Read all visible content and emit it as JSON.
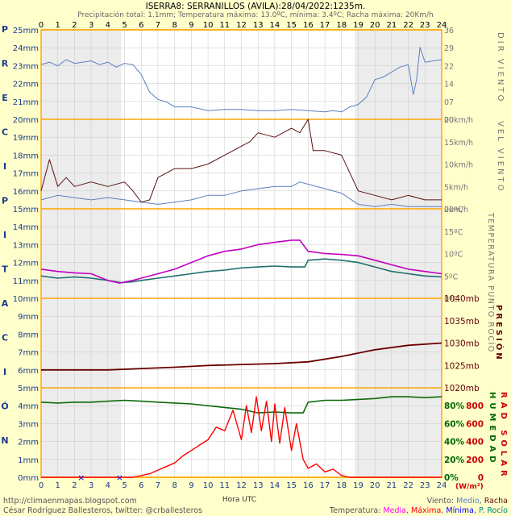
{
  "header": {
    "title": "ISERRA8: SERRANILLOS (AVILA):28/04/2022:1235m.",
    "subtitle": "Precipitación total: 1.1mm; Temperatura máxima: 13.0ºC, mínima: 3.4ºC; Racha máxima: 20Km/h"
  },
  "left_letters": [
    "P",
    "R",
    "E",
    "C",
    "I",
    "P",
    "I",
    "T",
    "A",
    "C",
    "I",
    "Ó",
    "N"
  ],
  "right_vertical": {
    "dir_viento": "DIR VIENTO",
    "vel_viento": "VEL VIENTO",
    "temp_rocio": "TEMPERATURA PUNTO ROCÍO",
    "presion": "PRESIÓN",
    "humedad": "HUMEDAD",
    "rad_solar": "RAD SOLAR"
  },
  "footer": {
    "url": "http://climaenmapas.blogspot.com",
    "author": "César Rodríguez Ballesteros, twitter: @crballesteros",
    "xlabel": "Hora UTC",
    "viento_prefix": "Viento: ",
    "viento_medio": "Medio",
    "viento_sep": ", ",
    "viento_racha": "Racha",
    "temp_prefix": "Temperatura: ",
    "temp_media": "Media",
    "temp_maxima": "Máxima",
    "temp_minima": "Mínima",
    "temp_rocio": "P. Rocío",
    "sep": ", ",
    "rad_unit": "(W/m²)"
  },
  "colors": {
    "background": "#ffffcc",
    "plot_bg": "#ffffff",
    "night_shade": "#ececec",
    "orange": "#ffa500",
    "gridline": "#c8c8c8",
    "left_axis_text": "#1a3a8a",
    "wind_mean": "#5b7fc0",
    "wind_gust": "#5a1010",
    "dew_point": "#1f6f6f",
    "temp_max": "#c000c0",
    "pressure": "#6b0000",
    "humidity": "#0a6a0a",
    "radiation": "#ff0000",
    "red_axis": "#cc0000",
    "green_axis": "#006600",
    "brown_axis": "#660000",
    "temp_media_legend": "#ff00ff",
    "temp_maxima_legend": "#ff0000",
    "temp_minima_legend": "#0000ff",
    "temp_rocio_legend": "#008080",
    "viento_medio_legend": "#5b7fc0",
    "viento_racha_legend": "#5a1010"
  },
  "chart_data": {
    "type": "line",
    "x_hours": [
      0,
      1,
      2,
      3,
      4,
      5,
      6,
      7,
      8,
      9,
      10,
      11,
      12,
      13,
      14,
      15,
      16,
      17,
      18,
      19,
      20,
      21,
      22,
      23,
      24
    ],
    "x_tick_labels": [
      "0",
      "1",
      "2",
      "3",
      "4",
      "5",
      "6",
      "7",
      "8",
      "9",
      "10",
      "11",
      "12",
      "13",
      "14",
      "15",
      "16",
      "17",
      "18",
      "19",
      "20",
      "21",
      "22",
      "23",
      "24"
    ],
    "night_periods": [
      [
        0,
        4.8
      ],
      [
        18.8,
        24
      ]
    ],
    "precip_tick_labels": [
      "25mm",
      "24mm",
      "23mm",
      "22mm",
      "21mm",
      "20mm",
      "19mm",
      "18mm",
      "17mm",
      "16mm",
      "15mm",
      "14mm",
      "13mm",
      "12mm",
      "11mm",
      "10mm",
      "9mm",
      "8mm",
      "7mm",
      "6mm",
      "5mm",
      "4mm",
      "3mm",
      "2mm",
      "1mm",
      "0mm"
    ],
    "precip_marks_hours": [
      2.4,
      4.7
    ],
    "panels": {
      "wind_dir": {
        "tick_labels": [
          "36",
          "29",
          "22",
          "14",
          "07",
          "00"
        ],
        "ylim": [
          0,
          36
        ],
        "points": [
          [
            0,
            22
          ],
          [
            0.5,
            23
          ],
          [
            1,
            21.5
          ],
          [
            1.5,
            24
          ],
          [
            2,
            22.5
          ],
          [
            2.5,
            23
          ],
          [
            3,
            23.5
          ],
          [
            3.5,
            22
          ],
          [
            4,
            23
          ],
          [
            4.5,
            21
          ],
          [
            5,
            22.5
          ],
          [
            5.5,
            22
          ],
          [
            6,
            18
          ],
          [
            6.5,
            11
          ],
          [
            7,
            8
          ],
          [
            7.5,
            7
          ],
          [
            8,
            5
          ],
          [
            9,
            5
          ],
          [
            10,
            3.5
          ],
          [
            11,
            4
          ],
          [
            12,
            4
          ],
          [
            13,
            3.5
          ],
          [
            14,
            3.5
          ],
          [
            15,
            4
          ],
          [
            16,
            3.5
          ],
          [
            17,
            3
          ],
          [
            17.5,
            3.5
          ],
          [
            18,
            3
          ],
          [
            18.5,
            5
          ],
          [
            19,
            6
          ],
          [
            19.5,
            9
          ],
          [
            20,
            16
          ],
          [
            20.5,
            17
          ],
          [
            21,
            19
          ],
          [
            21.5,
            21
          ],
          [
            22,
            22
          ],
          [
            22.3,
            10
          ],
          [
            22.5,
            16
          ],
          [
            22.7,
            29
          ],
          [
            23,
            23
          ],
          [
            23.5,
            23.5
          ],
          [
            24,
            24
          ]
        ]
      },
      "wind_speed": {
        "tick_labels": [
          "20km/h",
          "15km/h",
          "10km/h",
          "5km/h",
          "0km/h"
        ],
        "ylim": [
          0,
          20
        ],
        "series": [
          {
            "name": "Medio",
            "points": [
              [
                0,
                2
              ],
              [
                1,
                3
              ],
              [
                2,
                2.5
              ],
              [
                3,
                2
              ],
              [
                4,
                2.5
              ],
              [
                5,
                2
              ],
              [
                6,
                1.5
              ],
              [
                7,
                1
              ],
              [
                8,
                1.5
              ],
              [
                9,
                2
              ],
              [
                10,
                3
              ],
              [
                11,
                3
              ],
              [
                12,
                4
              ],
              [
                13,
                4.5
              ],
              [
                14,
                5
              ],
              [
                15,
                5
              ],
              [
                15.5,
                6
              ],
              [
                16,
                5.5
              ],
              [
                17,
                4.5
              ],
              [
                18,
                3.5
              ],
              [
                19,
                1
              ],
              [
                20,
                0.5
              ],
              [
                21,
                1
              ],
              [
                22,
                0.5
              ],
              [
                23,
                0.5
              ],
              [
                24,
                0.5
              ]
            ]
          },
          {
            "name": "Racha",
            "points": [
              [
                0,
                4
              ],
              [
                0.5,
                11
              ],
              [
                1,
                5
              ],
              [
                1.5,
                7
              ],
              [
                2,
                5
              ],
              [
                3,
                6
              ],
              [
                4,
                5
              ],
              [
                5,
                6
              ],
              [
                5.5,
                4
              ],
              [
                6,
                1.5
              ],
              [
                6.5,
                2
              ],
              [
                7,
                7
              ],
              [
                8,
                9
              ],
              [
                9,
                9
              ],
              [
                10,
                10
              ],
              [
                11,
                12
              ],
              [
                12,
                14
              ],
              [
                12.5,
                15
              ],
              [
                13,
                17
              ],
              [
                14,
                16
              ],
              [
                15,
                18
              ],
              [
                15.5,
                17
              ],
              [
                16,
                20
              ],
              [
                16.3,
                13
              ],
              [
                17,
                13
              ],
              [
                18,
                12
              ],
              [
                18.5,
                8
              ],
              [
                19,
                4
              ],
              [
                20,
                3
              ],
              [
                21,
                2
              ],
              [
                22,
                3
              ],
              [
                23,
                2
              ],
              [
                24,
                2
              ]
            ]
          }
        ]
      },
      "temperature": {
        "tick_labels": [
          "20ºC",
          "15ºC",
          "10ºC",
          "5ºC",
          "0ºC"
        ],
        "ylim": [
          0,
          20
        ],
        "series": [
          {
            "name": "Máxima",
            "points": [
              [
                0,
                6.5
              ],
              [
                1,
                6
              ],
              [
                2,
                5.7
              ],
              [
                3,
                5.5
              ],
              [
                4,
                4
              ],
              [
                4.7,
                3.4
              ],
              [
                5.5,
                4
              ],
              [
                6,
                4.5
              ],
              [
                7,
                5.5
              ],
              [
                8,
                6.5
              ],
              [
                9,
                8
              ],
              [
                10,
                9.5
              ],
              [
                11,
                10.5
              ],
              [
                12,
                11
              ],
              [
                13,
                12
              ],
              [
                14,
                12.5
              ],
              [
                15,
                13
              ],
              [
                15.5,
                13
              ],
              [
                16,
                10.5
              ],
              [
                17,
                10
              ],
              [
                18,
                9.8
              ],
              [
                19,
                9.5
              ],
              [
                20,
                8.5
              ],
              [
                21,
                7.5
              ],
              [
                22,
                6.5
              ],
              [
                23,
                6
              ],
              [
                24,
                5.5
              ]
            ]
          },
          {
            "name": "P. Rocío",
            "points": [
              [
                0,
                5
              ],
              [
                1,
                4.5
              ],
              [
                2,
                4.8
              ],
              [
                3,
                4.5
              ],
              [
                4,
                4
              ],
              [
                4.8,
                3.5
              ],
              [
                5.5,
                3.7
              ],
              [
                6,
                4
              ],
              [
                7,
                4.5
              ],
              [
                8,
                5
              ],
              [
                9,
                5.5
              ],
              [
                10,
                6
              ],
              [
                11,
                6.3
              ],
              [
                12,
                6.8
              ],
              [
                13,
                7
              ],
              [
                14,
                7.2
              ],
              [
                15,
                7
              ],
              [
                15.8,
                7
              ],
              [
                16,
                8.5
              ],
              [
                17,
                8.8
              ],
              [
                18,
                8.5
              ],
              [
                19,
                8
              ],
              [
                20,
                7
              ],
              [
                21,
                6
              ],
              [
                22,
                5.5
              ],
              [
                23,
                5
              ],
              [
                24,
                4.8
              ]
            ]
          }
        ]
      },
      "pressure": {
        "tick_labels": [
          "1040mb",
          "1035mb",
          "1030mb",
          "1025mb",
          "1020mb"
        ],
        "ylim": [
          1020,
          1040
        ],
        "points": [
          [
            0,
            1024
          ],
          [
            2,
            1024
          ],
          [
            4,
            1024
          ],
          [
            6,
            1024.3
          ],
          [
            8,
            1024.6
          ],
          [
            10,
            1025
          ],
          [
            12,
            1025.2
          ],
          [
            14,
            1025.4
          ],
          [
            16,
            1025.8
          ],
          [
            18,
            1027
          ],
          [
            20,
            1028.5
          ],
          [
            22,
            1029.5
          ],
          [
            24,
            1030
          ]
        ]
      },
      "humidity": {
        "tick_labels": [
          "80%",
          "60%",
          "40%",
          "20%",
          "0%"
        ],
        "ylim": [
          0,
          100
        ],
        "points": [
          [
            0,
            84
          ],
          [
            1,
            83
          ],
          [
            2,
            84
          ],
          [
            3,
            84
          ],
          [
            4,
            85
          ],
          [
            5,
            86
          ],
          [
            6,
            85
          ],
          [
            7,
            84
          ],
          [
            8,
            83
          ],
          [
            9,
            82
          ],
          [
            10,
            80
          ],
          [
            11,
            78
          ],
          [
            12,
            76
          ],
          [
            13,
            72
          ],
          [
            14,
            73
          ],
          [
            15,
            72
          ],
          [
            15.7,
            72
          ],
          [
            16,
            84
          ],
          [
            17,
            86
          ],
          [
            18,
            86
          ],
          [
            19,
            87
          ],
          [
            20,
            88
          ],
          [
            21,
            90
          ],
          [
            22,
            90
          ],
          [
            23,
            89
          ],
          [
            24,
            90
          ]
        ]
      },
      "radiation": {
        "tick_labels": [
          "800",
          "600",
          "400",
          "200",
          "0"
        ],
        "ylim": [
          0,
          1000
        ],
        "points": [
          [
            0,
            0
          ],
          [
            5.5,
            0
          ],
          [
            6,
            20
          ],
          [
            6.5,
            40
          ],
          [
            7,
            80
          ],
          [
            7.5,
            120
          ],
          [
            8,
            160
          ],
          [
            8.5,
            240
          ],
          [
            9,
            300
          ],
          [
            9.5,
            360
          ],
          [
            10,
            420
          ],
          [
            10.5,
            560
          ],
          [
            11,
            520
          ],
          [
            11.5,
            750
          ],
          [
            12,
            420
          ],
          [
            12.3,
            800
          ],
          [
            12.6,
            500
          ],
          [
            12.9,
            900
          ],
          [
            13.2,
            520
          ],
          [
            13.5,
            850
          ],
          [
            13.8,
            400
          ],
          [
            14,
            820
          ],
          [
            14.3,
            380
          ],
          [
            14.6,
            780
          ],
          [
            15,
            300
          ],
          [
            15.3,
            600
          ],
          [
            15.7,
            200
          ],
          [
            16,
            100
          ],
          [
            16.5,
            150
          ],
          [
            17,
            60
          ],
          [
            17.5,
            90
          ],
          [
            18,
            20
          ],
          [
            18.5,
            0
          ],
          [
            24,
            0
          ]
        ]
      }
    }
  }
}
